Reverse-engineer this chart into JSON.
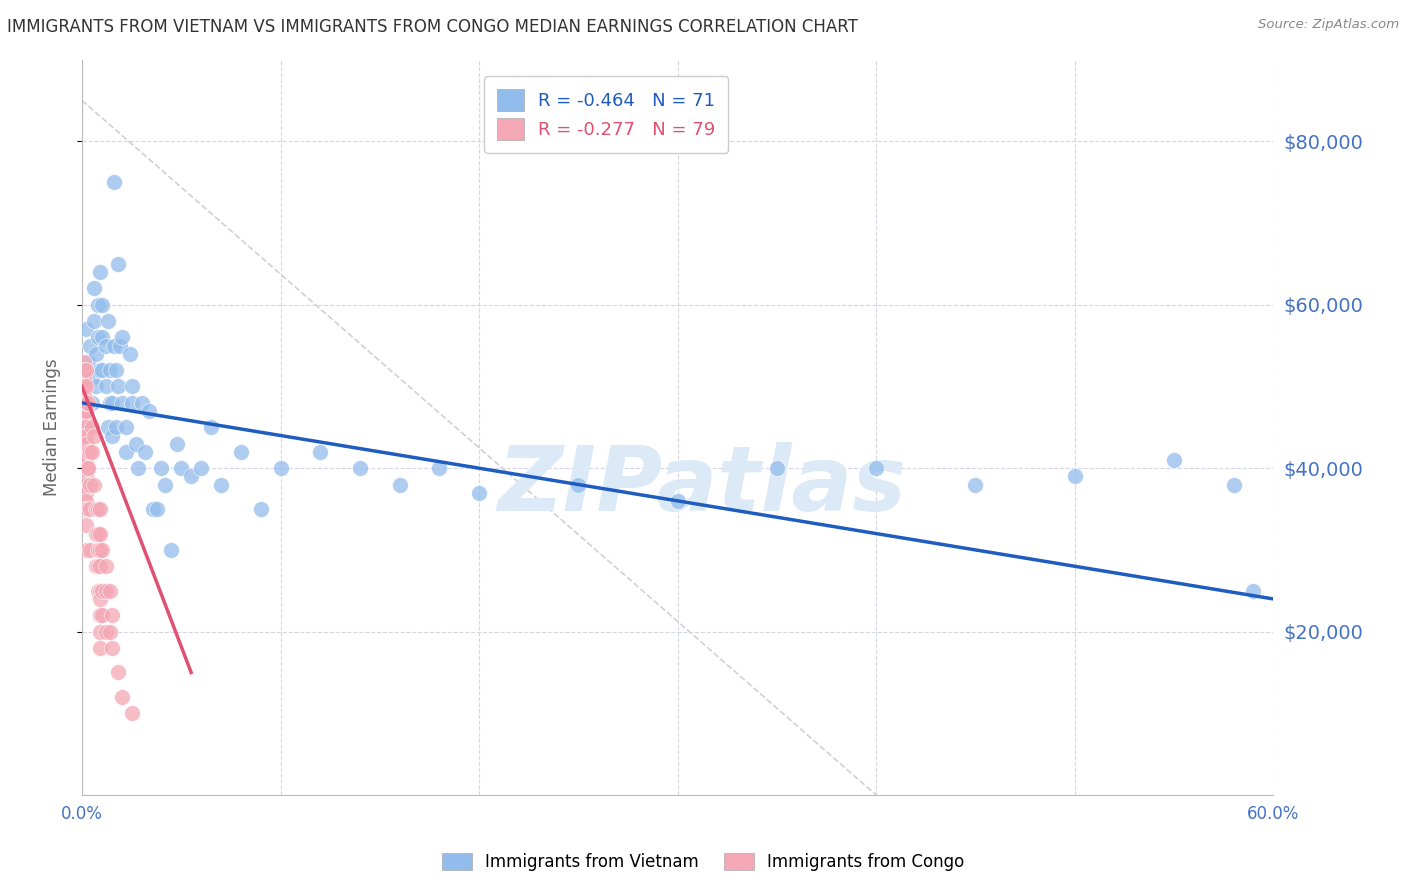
{
  "title": "IMMIGRANTS FROM VIETNAM VS IMMIGRANTS FROM CONGO MEDIAN EARNINGS CORRELATION CHART",
  "source": "Source: ZipAtlas.com",
  "ylabel": "Median Earnings",
  "right_ytick_labels": [
    "$20,000",
    "$40,000",
    "$60,000",
    "$80,000"
  ],
  "right_ytick_values": [
    20000,
    40000,
    60000,
    80000
  ],
  "xlim": [
    0.0,
    0.6
  ],
  "ylim": [
    0,
    90000
  ],
  "xtick_major": [
    0.0,
    0.6
  ],
  "xtick_minor": [
    0.1,
    0.2,
    0.3,
    0.4,
    0.5
  ],
  "vietnam_color": "#92BCEC",
  "congo_color": "#F4A7B5",
  "vietnam_R": -0.464,
  "vietnam_N": 71,
  "congo_R": -0.277,
  "congo_N": 79,
  "vietnam_scatter_x": [
    0.002,
    0.003,
    0.004,
    0.005,
    0.005,
    0.006,
    0.006,
    0.007,
    0.007,
    0.008,
    0.008,
    0.009,
    0.009,
    0.01,
    0.01,
    0.01,
    0.012,
    0.012,
    0.013,
    0.013,
    0.014,
    0.014,
    0.015,
    0.015,
    0.016,
    0.016,
    0.017,
    0.017,
    0.018,
    0.018,
    0.019,
    0.02,
    0.02,
    0.022,
    0.022,
    0.024,
    0.025,
    0.025,
    0.027,
    0.028,
    0.03,
    0.032,
    0.034,
    0.036,
    0.038,
    0.04,
    0.042,
    0.045,
    0.048,
    0.05,
    0.055,
    0.06,
    0.065,
    0.07,
    0.08,
    0.09,
    0.1,
    0.12,
    0.14,
    0.16,
    0.18,
    0.2,
    0.25,
    0.3,
    0.35,
    0.4,
    0.45,
    0.5,
    0.55,
    0.58,
    0.59
  ],
  "vietnam_scatter_y": [
    57000,
    53000,
    55000,
    51000,
    48000,
    62000,
    58000,
    54000,
    50000,
    60000,
    56000,
    52000,
    64000,
    60000,
    56000,
    52000,
    55000,
    50000,
    45000,
    58000,
    52000,
    48000,
    48000,
    44000,
    75000,
    55000,
    52000,
    45000,
    65000,
    50000,
    55000,
    48000,
    56000,
    42000,
    45000,
    54000,
    48000,
    50000,
    43000,
    40000,
    48000,
    42000,
    47000,
    35000,
    35000,
    40000,
    38000,
    30000,
    43000,
    40000,
    39000,
    40000,
    45000,
    38000,
    42000,
    35000,
    40000,
    42000,
    40000,
    38000,
    40000,
    37000,
    38000,
    36000,
    40000,
    40000,
    38000,
    39000,
    41000,
    38000,
    25000
  ],
  "congo_scatter_x": [
    0.001,
    0.001,
    0.001,
    0.001,
    0.001,
    0.0012,
    0.0012,
    0.0012,
    0.0012,
    0.0012,
    0.0012,
    0.0012,
    0.0015,
    0.0015,
    0.0015,
    0.002,
    0.002,
    0.002,
    0.002,
    0.002,
    0.002,
    0.002,
    0.002,
    0.002,
    0.002,
    0.002,
    0.002,
    0.002,
    0.002,
    0.002,
    0.002,
    0.002,
    0.002,
    0.002,
    0.002,
    0.002,
    0.003,
    0.003,
    0.003,
    0.003,
    0.003,
    0.004,
    0.004,
    0.004,
    0.004,
    0.005,
    0.005,
    0.006,
    0.006,
    0.007,
    0.007,
    0.007,
    0.008,
    0.008,
    0.008,
    0.008,
    0.008,
    0.009,
    0.009,
    0.009,
    0.009,
    0.009,
    0.009,
    0.009,
    0.009,
    0.009,
    0.01,
    0.01,
    0.01,
    0.012,
    0.012,
    0.012,
    0.014,
    0.014,
    0.015,
    0.015,
    0.018,
    0.02,
    0.025
  ],
  "congo_scatter_y": [
    53000,
    51000,
    50000,
    48000,
    47000,
    52000,
    50000,
    49000,
    48000,
    47000,
    46000,
    45000,
    44000,
    43000,
    42000,
    52000,
    50000,
    48000,
    47000,
    45000,
    44000,
    43000,
    42000,
    41000,
    40000,
    39000,
    38000,
    37000,
    36000,
    35000,
    33000,
    30000,
    48000,
    44000,
    43000,
    41000,
    42000,
    40000,
    35000,
    48000,
    40000,
    42000,
    38000,
    35000,
    30000,
    45000,
    42000,
    44000,
    38000,
    35000,
    32000,
    28000,
    35000,
    32000,
    30000,
    28000,
    25000,
    35000,
    32000,
    30000,
    28000,
    25000,
    24000,
    22000,
    20000,
    18000,
    30000,
    25000,
    22000,
    28000,
    25000,
    20000,
    25000,
    20000,
    22000,
    18000,
    15000,
    12000,
    10000
  ],
  "vietnam_trendline_x": [
    0.0,
    0.6
  ],
  "vietnam_trendline_y": [
    48000,
    24000
  ],
  "congo_trendline_x": [
    0.0,
    0.055
  ],
  "congo_trendline_y": [
    50000,
    15000
  ],
  "diag_line_x": [
    0.0,
    0.4
  ],
  "diag_line_y": [
    85000,
    0
  ],
  "background_color": "#ffffff",
  "grid_color": "#d5d5e8",
  "axis_color": "#bbbbbb",
  "title_color": "#333333",
  "right_axis_color": "#4472c4",
  "watermark_text": "ZIPatlas",
  "watermark_color": "#dce9f7",
  "vietnam_trendline_color": "#1f5cbf",
  "congo_trendline_color": "#e05070",
  "diag_line_color": "#cccccc"
}
